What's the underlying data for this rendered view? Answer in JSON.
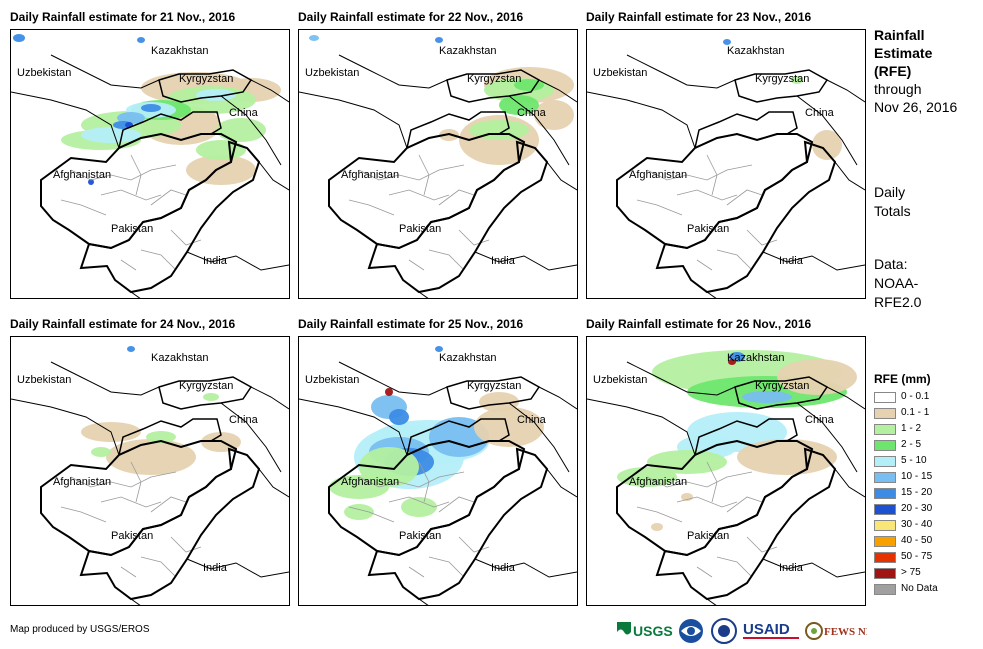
{
  "panels": [
    {
      "title": "Daily Rainfall estimate for 21 Nov., 2016"
    },
    {
      "title": "Daily Rainfall estimate for 22 Nov., 2016"
    },
    {
      "title": "Daily Rainfall estimate for 23 Nov., 2016"
    },
    {
      "title": "Daily Rainfall estimate for 24 Nov., 2016"
    },
    {
      "title": "Daily Rainfall estimate for 25 Nov., 2016"
    },
    {
      "title": "Daily Rainfall estimate for 26 Nov., 2016"
    }
  ],
  "map_labels": {
    "kazakhstan": "Kazakhstan",
    "uzbekistan": "Uzbekistan",
    "kyrgyzstan": "Kyrgyzstan",
    "china": "China",
    "afghanistan": "Afghanistan",
    "pakistan": "Pakistan",
    "india": "India"
  },
  "side": {
    "heading_l1": "Rainfall",
    "heading_l2": "Estimate",
    "heading_l3": "(RFE)",
    "sub_l1": "through",
    "sub_l2": "Nov 26, 2016",
    "daily_l1": "Daily",
    "daily_l2": "Totals",
    "data_l1": "Data:",
    "data_l2": "NOAA-",
    "data_l3": "RFE2.0"
  },
  "legend": {
    "title": "RFE (mm)",
    "items": [
      {
        "label": "0 - 0.1",
        "color": "#ffffff"
      },
      {
        "label": "0.1 - 1",
        "color": "#e6d2b0"
      },
      {
        "label": "1 - 2",
        "color": "#b4f0a0"
      },
      {
        "label": "2 - 5",
        "color": "#6ee66e"
      },
      {
        "label": "5 - 10",
        "color": "#b4eef8"
      },
      {
        "label": "10 - 15",
        "color": "#78bef0"
      },
      {
        "label": "15 - 20",
        "color": "#3c8ce6"
      },
      {
        "label": "20 - 30",
        "color": "#1e50d2"
      },
      {
        "label": "30 - 40",
        "color": "#f8e678"
      },
      {
        "label": "40 - 50",
        "color": "#f8a000"
      },
      {
        "label": "50 - 75",
        "color": "#e63200"
      },
      {
        "label": "> 75",
        "color": "#a01414"
      },
      {
        "label": "No Data",
        "color": "#a0a0a0"
      }
    ]
  },
  "credit": "Map produced by USGS/EROS",
  "logos": {
    "usgs": "USGS",
    "usaid": "USAID",
    "fewsnet": "FEWS NET"
  }
}
